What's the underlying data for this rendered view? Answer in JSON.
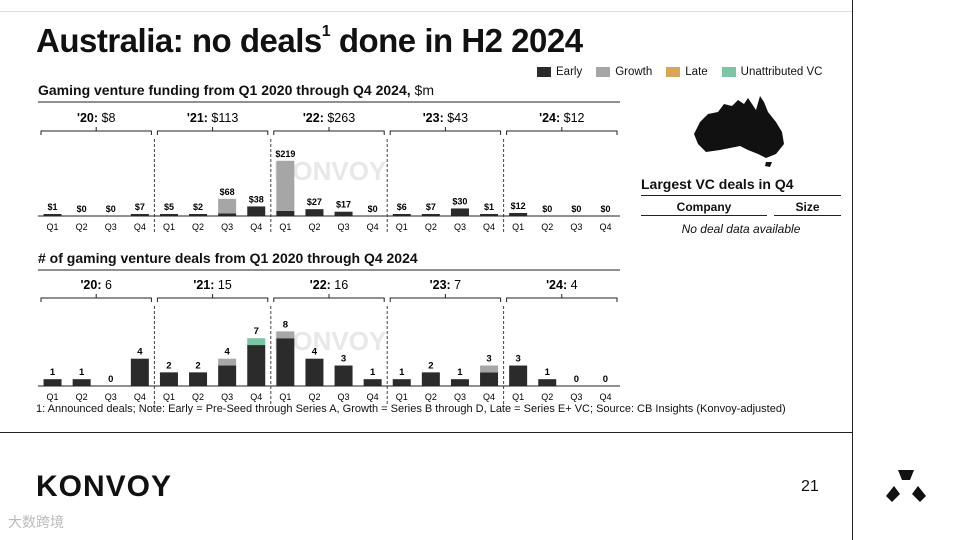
{
  "title": "Australia: no deals",
  "title_sup": "1",
  "title_rest": "done in H2 2024",
  "legend": [
    {
      "label": "Early",
      "color": "#2b2b2b"
    },
    {
      "label": "Growth",
      "color": "#a6a6a6"
    },
    {
      "label": "Late",
      "color": "#d9a55b"
    },
    {
      "label": "Unattributed VC",
      "color": "#7cc4a4"
    }
  ],
  "colors": {
    "early": "#2b2b2b",
    "growth": "#a6a6a6",
    "late": "#d9a55b",
    "unattributed": "#7cc4a4"
  },
  "funding_section": {
    "title": "Gaming venture funding from Q1 2020 through Q4 2024,",
    "unit": "$m"
  },
  "deals_section": {
    "title": "# of gaming venture deals from Q1 2020 through Q4 2024"
  },
  "watermark": "KONVOY",
  "chart_data": [
    {
      "type": "bar",
      "title": "Gaming venture funding from Q1 2020 through Q4 2024, $m",
      "stacked": true,
      "categories": [
        "Q1",
        "Q2",
        "Q3",
        "Q4",
        "Q1",
        "Q2",
        "Q3",
        "Q4",
        "Q1",
        "Q2",
        "Q3",
        "Q4",
        "Q1",
        "Q2",
        "Q3",
        "Q4",
        "Q1",
        "Q2",
        "Q3",
        "Q4"
      ],
      "years": [
        {
          "label": "'20:",
          "total": "$8"
        },
        {
          "label": "'21:",
          "total": "$113"
        },
        {
          "label": "'22:",
          "total": "$263"
        },
        {
          "label": "'23:",
          "total": "$43"
        },
        {
          "label": "'24:",
          "total": "$12"
        }
      ],
      "totals_labels": [
        "$1",
        "$0",
        "$0",
        "$7",
        "$5",
        "$2",
        "$68",
        "$38",
        "$219",
        "$27",
        "$17",
        "$0",
        "$6",
        "$7",
        "$30",
        "$1",
        "$12",
        "$0",
        "$0",
        "$0"
      ],
      "series": [
        {
          "name": "Early",
          "values": [
            1,
            0,
            0,
            7,
            5,
            2,
            10,
            38,
            20,
            27,
            17,
            0,
            6,
            7,
            30,
            1,
            12,
            0,
            0,
            0
          ]
        },
        {
          "name": "Growth",
          "values": [
            0,
            0,
            0,
            0,
            0,
            0,
            58,
            0,
            199,
            0,
            0,
            0,
            0,
            0,
            0,
            0,
            0,
            0,
            0,
            0
          ]
        },
        {
          "name": "Late",
          "values": [
            0,
            0,
            0,
            0,
            0,
            0,
            0,
            0,
            0,
            0,
            0,
            0,
            0,
            0,
            0,
            0,
            0,
            0,
            0,
            0
          ]
        },
        {
          "name": "Unattributed VC",
          "values": [
            0,
            0,
            0,
            0,
            0,
            0,
            0,
            0,
            0,
            0,
            0,
            0,
            0,
            0,
            0,
            0,
            0,
            0,
            0,
            0
          ]
        }
      ],
      "ylim": [
        0,
        230
      ]
    },
    {
      "type": "bar",
      "title": "# of gaming venture deals from Q1 2020 through Q4 2024",
      "stacked": true,
      "categories": [
        "Q1",
        "Q2",
        "Q3",
        "Q4",
        "Q1",
        "Q2",
        "Q3",
        "Q4",
        "Q1",
        "Q2",
        "Q3",
        "Q4",
        "Q1",
        "Q2",
        "Q3",
        "Q4",
        "Q1",
        "Q2",
        "Q3",
        "Q4"
      ],
      "years": [
        {
          "label": "'20:",
          "total": "6"
        },
        {
          "label": "'21:",
          "total": "15"
        },
        {
          "label": "'22:",
          "total": "16"
        },
        {
          "label": "'23:",
          "total": "7"
        },
        {
          "label": "'24:",
          "total": "4"
        }
      ],
      "totals_labels": [
        "1",
        "1",
        "0",
        "4",
        "2",
        "2",
        "4",
        "7",
        "8",
        "4",
        "3",
        "1",
        "1",
        "2",
        "1",
        "3",
        "3",
        "1",
        "0",
        "0"
      ],
      "series": [
        {
          "name": "Early",
          "values": [
            1,
            1,
            0,
            4,
            2,
            2,
            3,
            6,
            7,
            4,
            3,
            1,
            1,
            2,
            1,
            2,
            3,
            1,
            0,
            0
          ]
        },
        {
          "name": "Growth",
          "values": [
            0,
            0,
            0,
            0,
            0,
            0,
            1,
            0,
            1,
            0,
            0,
            0,
            0,
            0,
            0,
            1,
            0,
            0,
            0,
            0
          ]
        },
        {
          "name": "Late",
          "values": [
            0,
            0,
            0,
            0,
            0,
            0,
            0,
            0,
            0,
            0,
            0,
            0,
            0,
            0,
            0,
            0,
            0,
            0,
            0,
            0
          ]
        },
        {
          "name": "Unattributed VC",
          "values": [
            0,
            0,
            0,
            0,
            0,
            0,
            0,
            1,
            0,
            0,
            0,
            0,
            0,
            0,
            0,
            0,
            0,
            0,
            0,
            0
          ]
        }
      ],
      "ylim": [
        0,
        8.5
      ]
    }
  ],
  "side": {
    "title": "Largest VC deals in Q4",
    "col_company": "Company",
    "col_size": "Size",
    "empty": "No deal data available"
  },
  "footnote": "1: Announced deals; Note: Early = Pre-Seed through Series A, Growth = Series B through D, Late = Series E+ VC; Source: CB Insights (Konvoy-adjusted)",
  "brand": "KONVOY",
  "page_number": "21",
  "bottom_watermark": "大数跨境"
}
